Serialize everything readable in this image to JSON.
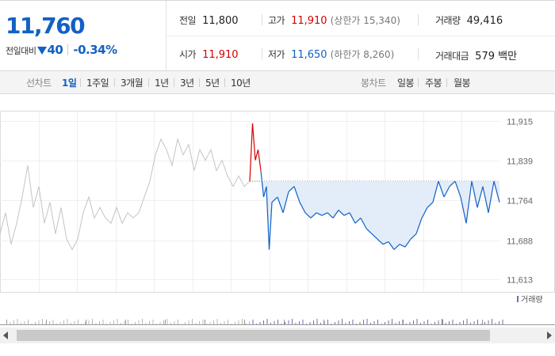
{
  "summary": {
    "current_price": "11,760",
    "change_label": "전일대비",
    "change_icon": "down-triangle-icon",
    "change_value": "40",
    "change_rate": "-0.34%",
    "prev_close": {
      "label": "전일",
      "value": "11,800"
    },
    "high": {
      "label": "고가",
      "value": "11,910",
      "limit": "(상한가 15,340)"
    },
    "volume": {
      "label": "거래량",
      "value": "49,416"
    },
    "open": {
      "label": "시가",
      "value": "11,910"
    },
    "low": {
      "label": "저가",
      "value": "11,650",
      "limit": "(하한가 8,260)"
    },
    "amount": {
      "label": "거래대금",
      "value": "579 백만"
    }
  },
  "tabs": {
    "line_chart_label": "선차트",
    "line_items": [
      "1일",
      "1주일",
      "3개월",
      "1년",
      "3년",
      "5년",
      "10년"
    ],
    "active_line_item": "1일",
    "candle_chart_label": "봉차트",
    "candle_items": [
      "일봉",
      "주봉",
      "월봉"
    ]
  },
  "colors": {
    "up": "#d60000",
    "down": "#1261c4",
    "accent": "#1261c4"
  },
  "chart_data": {
    "type": "line",
    "y_ticks": [
      "11,915",
      "11,839",
      "11,764",
      "11,688",
      "11,613"
    ],
    "ylim": [
      11600,
      11925
    ],
    "reference_price": 11800,
    "volume_legend": "거래량",
    "grid": true,
    "previous_day_series": [
      {
        "x": 0,
        "y": 11700
      },
      {
        "x": 2,
        "y": 11740
      },
      {
        "x": 4,
        "y": 11680
      },
      {
        "x": 6,
        "y": 11720
      },
      {
        "x": 8,
        "y": 11770
      },
      {
        "x": 10,
        "y": 11830
      },
      {
        "x": 12,
        "y": 11750
      },
      {
        "x": 14,
        "y": 11790
      },
      {
        "x": 16,
        "y": 11720
      },
      {
        "x": 18,
        "y": 11760
      },
      {
        "x": 20,
        "y": 11700
      },
      {
        "x": 22,
        "y": 11750
      },
      {
        "x": 24,
        "y": 11690
      },
      {
        "x": 26,
        "y": 11670
      },
      {
        "x": 28,
        "y": 11690
      },
      {
        "x": 30,
        "y": 11740
      },
      {
        "x": 32,
        "y": 11770
      },
      {
        "x": 34,
        "y": 11730
      },
      {
        "x": 36,
        "y": 11750
      },
      {
        "x": 38,
        "y": 11730
      },
      {
        "x": 40,
        "y": 11720
      },
      {
        "x": 42,
        "y": 11750
      },
      {
        "x": 44,
        "y": 11720
      },
      {
        "x": 46,
        "y": 11740
      },
      {
        "x": 48,
        "y": 11730
      },
      {
        "x": 50,
        "y": 11740
      },
      {
        "x": 52,
        "y": 11770
      },
      {
        "x": 54,
        "y": 11800
      },
      {
        "x": 56,
        "y": 11850
      },
      {
        "x": 58,
        "y": 11880
      },
      {
        "x": 60,
        "y": 11860
      },
      {
        "x": 62,
        "y": 11830
      },
      {
        "x": 64,
        "y": 11880
      },
      {
        "x": 66,
        "y": 11850
      },
      {
        "x": 68,
        "y": 11870
      },
      {
        "x": 70,
        "y": 11820
      },
      {
        "x": 72,
        "y": 11860
      },
      {
        "x": 74,
        "y": 11840
      },
      {
        "x": 76,
        "y": 11860
      },
      {
        "x": 78,
        "y": 11820
      },
      {
        "x": 80,
        "y": 11840
      },
      {
        "x": 82,
        "y": 11810
      },
      {
        "x": 84,
        "y": 11790
      },
      {
        "x": 86,
        "y": 11810
      },
      {
        "x": 88,
        "y": 11790
      },
      {
        "x": 90,
        "y": 11800
      }
    ],
    "today_series": [
      {
        "x": 90,
        "y": 11800
      },
      {
        "x": 91,
        "y": 11910
      },
      {
        "x": 92,
        "y": 11840
      },
      {
        "x": 93,
        "y": 11860
      },
      {
        "x": 94,
        "y": 11820
      },
      {
        "x": 95,
        "y": 11770
      },
      {
        "x": 96,
        "y": 11790
      },
      {
        "x": 97,
        "y": 11670
      },
      {
        "x": 98,
        "y": 11760
      },
      {
        "x": 100,
        "y": 11770
      },
      {
        "x": 102,
        "y": 11740
      },
      {
        "x": 104,
        "y": 11780
      },
      {
        "x": 106,
        "y": 11790
      },
      {
        "x": 108,
        "y": 11760
      },
      {
        "x": 110,
        "y": 11740
      },
      {
        "x": 112,
        "y": 11730
      },
      {
        "x": 114,
        "y": 11740
      },
      {
        "x": 116,
        "y": 11735
      },
      {
        "x": 118,
        "y": 11740
      },
      {
        "x": 120,
        "y": 11730
      },
      {
        "x": 122,
        "y": 11745
      },
      {
        "x": 124,
        "y": 11735
      },
      {
        "x": 126,
        "y": 11740
      },
      {
        "x": 128,
        "y": 11720
      },
      {
        "x": 130,
        "y": 11730
      },
      {
        "x": 132,
        "y": 11710
      },
      {
        "x": 134,
        "y": 11700
      },
      {
        "x": 136,
        "y": 11690
      },
      {
        "x": 138,
        "y": 11680
      },
      {
        "x": 140,
        "y": 11685
      },
      {
        "x": 142,
        "y": 11670
      },
      {
        "x": 144,
        "y": 11680
      },
      {
        "x": 146,
        "y": 11675
      },
      {
        "x": 148,
        "y": 11690
      },
      {
        "x": 150,
        "y": 11700
      },
      {
        "x": 152,
        "y": 11730
      },
      {
        "x": 154,
        "y": 11750
      },
      {
        "x": 156,
        "y": 11760
      },
      {
        "x": 158,
        "y": 11800
      },
      {
        "x": 160,
        "y": 11770
      },
      {
        "x": 162,
        "y": 11790
      },
      {
        "x": 164,
        "y": 11800
      },
      {
        "x": 166,
        "y": 11770
      },
      {
        "x": 168,
        "y": 11720
      },
      {
        "x": 170,
        "y": 11800
      },
      {
        "x": 172,
        "y": 11750
      },
      {
        "x": 174,
        "y": 11790
      },
      {
        "x": 176,
        "y": 11740
      },
      {
        "x": 178,
        "y": 11800
      },
      {
        "x": 180,
        "y": 11760
      }
    ]
  }
}
